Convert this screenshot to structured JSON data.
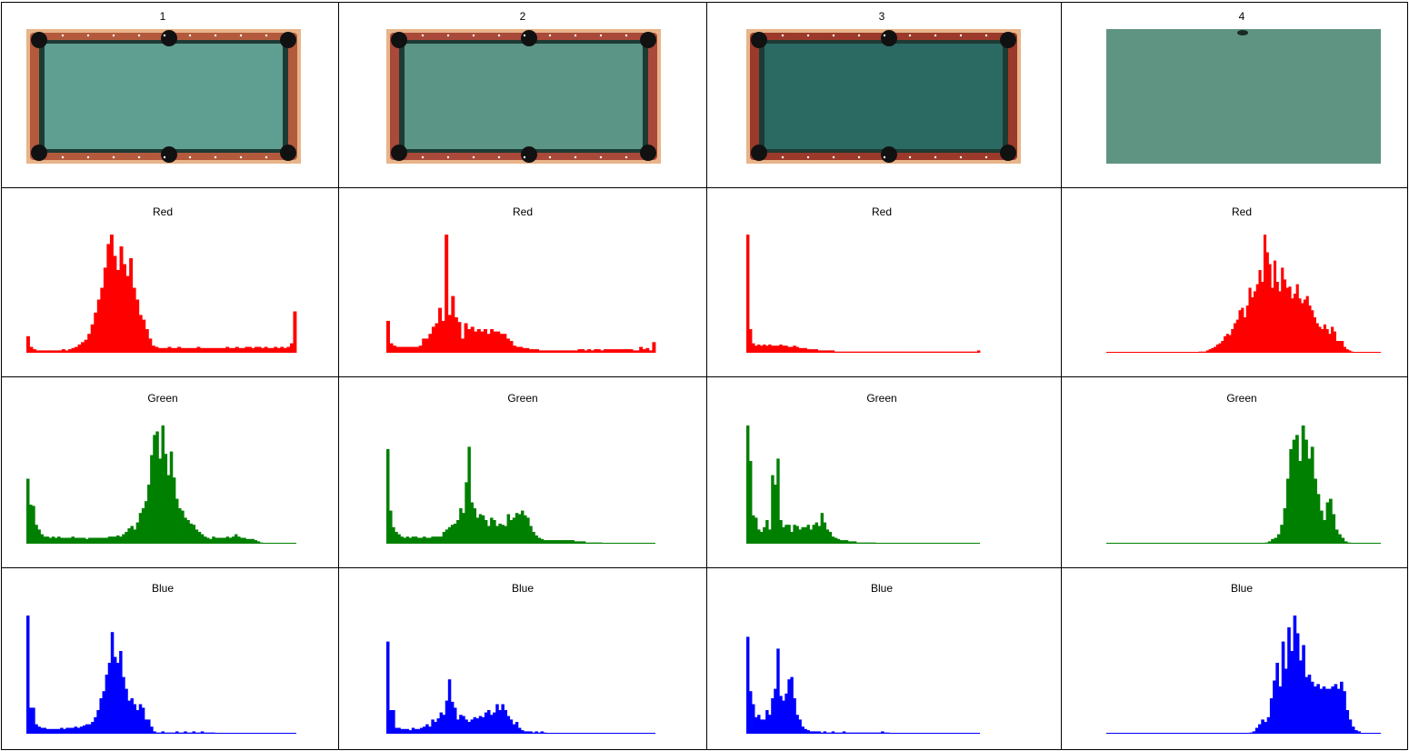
{
  "columns": [
    {
      "label": "1"
    },
    {
      "label": "2"
    },
    {
      "label": "3"
    },
    {
      "label": "4"
    }
  ],
  "thumbnails": [
    {
      "name": "table-full-bright",
      "felt": "#5f9f92",
      "rail": "#b45a3c",
      "frame": true
    },
    {
      "name": "table-full-normal",
      "felt": "#5a9586",
      "rail": "#a9493a",
      "frame": true
    },
    {
      "name": "table-full-dark",
      "felt": "#2a6a63",
      "rail": "#9b3a2a",
      "frame": true
    },
    {
      "name": "felt-crop",
      "felt": "#5f9483",
      "rail": "",
      "frame": false
    }
  ],
  "chart_data": [
    {
      "type": "bar",
      "title": "Red",
      "color": "#ff0000",
      "column": 1,
      "x_range": [
        0,
        255
      ],
      "ylim": [
        0,
        1
      ],
      "values": [
        0.14,
        0.05,
        0.03,
        0.02,
        0.02,
        0.02,
        0.02,
        0.02,
        0.02,
        0.02,
        0.02,
        0.03,
        0.02,
        0.03,
        0.04,
        0.05,
        0.07,
        0.09,
        0.11,
        0.16,
        0.24,
        0.34,
        0.45,
        0.55,
        0.72,
        0.92,
        1.0,
        0.82,
        0.7,
        0.9,
        0.75,
        0.65,
        0.8,
        0.55,
        0.45,
        0.32,
        0.28,
        0.2,
        0.12,
        0.06,
        0.05,
        0.04,
        0.04,
        0.04,
        0.05,
        0.04,
        0.04,
        0.05,
        0.04,
        0.04,
        0.04,
        0.04,
        0.04,
        0.05,
        0.04,
        0.04,
        0.04,
        0.04,
        0.04,
        0.04,
        0.04,
        0.04,
        0.05,
        0.04,
        0.04,
        0.05,
        0.04,
        0.04,
        0.05,
        0.05,
        0.04,
        0.05,
        0.05,
        0.04,
        0.05,
        0.04,
        0.04,
        0.05,
        0.04,
        0.05,
        0.04,
        0.05,
        0.08,
        0.35
      ]
    },
    {
      "type": "bar",
      "title": "Green",
      "color": "#008000",
      "column": 1,
      "x_range": [
        0,
        255
      ],
      "ylim": [
        0,
        1
      ],
      "values": [
        0.55,
        0.33,
        0.32,
        0.16,
        0.12,
        0.08,
        0.06,
        0.06,
        0.05,
        0.06,
        0.05,
        0.06,
        0.05,
        0.05,
        0.05,
        0.05,
        0.06,
        0.05,
        0.05,
        0.05,
        0.05,
        0.04,
        0.05,
        0.05,
        0.05,
        0.05,
        0.05,
        0.05,
        0.05,
        0.06,
        0.06,
        0.06,
        0.07,
        0.06,
        0.08,
        0.1,
        0.13,
        0.15,
        0.12,
        0.18,
        0.26,
        0.3,
        0.36,
        0.5,
        0.75,
        0.92,
        0.95,
        0.72,
        1.0,
        0.76,
        0.58,
        0.78,
        0.56,
        0.38,
        0.3,
        0.28,
        0.22,
        0.2,
        0.17,
        0.16,
        0.12,
        0.1,
        0.08,
        0.06,
        0.05,
        0.04,
        0.06,
        0.05,
        0.05,
        0.05,
        0.05,
        0.06,
        0.05,
        0.06,
        0.08,
        0.06,
        0.05,
        0.05,
        0.04,
        0.04,
        0.04,
        0.03,
        0.02,
        0.01,
        0.0,
        0.0,
        0.0,
        0.0,
        0.0,
        0.0,
        0.0,
        0.0,
        0.0,
        0.0,
        0.0,
        0.0
      ]
    },
    {
      "type": "bar",
      "title": "Blue",
      "color": "#0000ff",
      "column": 1,
      "x_range": [
        0,
        255
      ],
      "ylim": [
        0,
        1
      ],
      "values": [
        1.0,
        0.22,
        0.22,
        0.08,
        0.06,
        0.05,
        0.05,
        0.04,
        0.04,
        0.04,
        0.04,
        0.04,
        0.05,
        0.04,
        0.05,
        0.05,
        0.05,
        0.06,
        0.05,
        0.06,
        0.07,
        0.08,
        0.08,
        0.1,
        0.14,
        0.2,
        0.3,
        0.36,
        0.5,
        0.6,
        0.86,
        0.65,
        0.6,
        0.7,
        0.48,
        0.38,
        0.28,
        0.3,
        0.25,
        0.2,
        0.25,
        0.22,
        0.12,
        0.12,
        0.06,
        0.02,
        0.01,
        0.01,
        0.02,
        0.01,
        0.01,
        0.01,
        0.01,
        0.02,
        0.01,
        0.01,
        0.02,
        0.01,
        0.01,
        0.02,
        0.01,
        0.01,
        0.02,
        0.01,
        0.01,
        0.01,
        0.01,
        0.0,
        0.0,
        0.0,
        0.0,
        0.0,
        0.0,
        0.0,
        0.0,
        0.0,
        0.0,
        0.0,
        0.0,
        0.0,
        0.0,
        0.0,
        0.0,
        0.0,
        0.0,
        0.0,
        0.0,
        0.0,
        0.0,
        0.0,
        0.0,
        0.0,
        0.0,
        0.0,
        0.0,
        0.0
      ]
    },
    {
      "type": "bar",
      "title": "Red",
      "color": "#ff0000",
      "column": 2,
      "x_range": [
        0,
        255
      ],
      "ylim": [
        0,
        1
      ],
      "values": [
        0.27,
        0.08,
        0.06,
        0.05,
        0.05,
        0.05,
        0.05,
        0.05,
        0.05,
        0.05,
        0.06,
        0.12,
        0.12,
        0.16,
        0.22,
        0.25,
        0.38,
        0.27,
        1.0,
        0.32,
        0.48,
        0.3,
        0.26,
        0.12,
        0.25,
        0.2,
        0.22,
        0.18,
        0.2,
        0.18,
        0.2,
        0.16,
        0.2,
        0.18,
        0.18,
        0.16,
        0.16,
        0.12,
        0.1,
        0.06,
        0.05,
        0.05,
        0.04,
        0.04,
        0.03,
        0.03,
        0.03,
        0.02,
        0.02,
        0.02,
        0.02,
        0.02,
        0.02,
        0.02,
        0.02,
        0.02,
        0.02,
        0.02,
        0.02,
        0.03,
        0.03,
        0.02,
        0.03,
        0.02,
        0.03,
        0.03,
        0.02,
        0.03,
        0.03,
        0.03,
        0.03,
        0.03,
        0.03,
        0.03,
        0.03,
        0.03,
        0.02,
        0.02,
        0.05,
        0.03,
        0.04,
        0.02,
        0.09
      ]
    },
    {
      "type": "bar",
      "title": "Green",
      "color": "#008000",
      "column": 2,
      "x_range": [
        0,
        255
      ],
      "ylim": [
        0,
        1
      ],
      "values": [
        0.8,
        0.28,
        0.14,
        0.1,
        0.08,
        0.06,
        0.05,
        0.06,
        0.05,
        0.06,
        0.06,
        0.05,
        0.05,
        0.06,
        0.05,
        0.05,
        0.06,
        0.06,
        0.06,
        0.06,
        0.1,
        0.12,
        0.14,
        0.16,
        0.17,
        0.2,
        0.3,
        0.26,
        0.52,
        0.82,
        0.35,
        0.3,
        0.22,
        0.25,
        0.24,
        0.2,
        0.15,
        0.22,
        0.2,
        0.15,
        0.17,
        0.16,
        0.15,
        0.25,
        0.2,
        0.22,
        0.26,
        0.25,
        0.28,
        0.24,
        0.22,
        0.15,
        0.1,
        0.07,
        0.05,
        0.04,
        0.03,
        0.03,
        0.03,
        0.03,
        0.03,
        0.03,
        0.03,
        0.03,
        0.03,
        0.03,
        0.03,
        0.02,
        0.02,
        0.02,
        0.02,
        0.01,
        0.01,
        0.01,
        0.01,
        0.01,
        0.01,
        0.0,
        0.0,
        0.0,
        0.0,
        0.0,
        0.0,
        0.0,
        0.0,
        0.0,
        0.0,
        0.0,
        0.0,
        0.0,
        0.0,
        0.0,
        0.0,
        0.0,
        0.0,
        0.0
      ]
    },
    {
      "type": "bar",
      "title": "Blue",
      "color": "#0000ff",
      "column": 2,
      "x_range": [
        0,
        255
      ],
      "ylim": [
        0,
        1
      ],
      "values": [
        0.78,
        0.2,
        0.2,
        0.05,
        0.05,
        0.04,
        0.04,
        0.04,
        0.03,
        0.05,
        0.04,
        0.04,
        0.05,
        0.06,
        0.08,
        0.06,
        0.12,
        0.1,
        0.13,
        0.18,
        0.16,
        0.28,
        0.46,
        0.27,
        0.22,
        0.12,
        0.16,
        0.15,
        0.12,
        0.1,
        0.12,
        0.14,
        0.13,
        0.15,
        0.14,
        0.18,
        0.2,
        0.16,
        0.18,
        0.25,
        0.2,
        0.25,
        0.2,
        0.15,
        0.12,
        0.08,
        0.1,
        0.05,
        0.03,
        0.02,
        0.02,
        0.02,
        0.01,
        0.02,
        0.01,
        0.02,
        0.01,
        0.0,
        0.0,
        0.0,
        0.0,
        0.0,
        0.0,
        0.0,
        0.0,
        0.0,
        0.0,
        0.0,
        0.0,
        0.0,
        0.0,
        0.0,
        0.0,
        0.0,
        0.0,
        0.0,
        0.0,
        0.0,
        0.0,
        0.0,
        0.0,
        0.0,
        0.0,
        0.0,
        0.0,
        0.0,
        0.0,
        0.0,
        0.0,
        0.0,
        0.0,
        0.0,
        0.0,
        0.0,
        0.0,
        0.0
      ]
    },
    {
      "type": "bar",
      "title": "Red",
      "color": "#ff0000",
      "column": 3,
      "x_range": [
        0,
        255
      ],
      "ylim": [
        0,
        1
      ],
      "values": [
        1.0,
        0.2,
        0.08,
        0.06,
        0.07,
        0.06,
        0.07,
        0.06,
        0.07,
        0.06,
        0.06,
        0.06,
        0.07,
        0.06,
        0.06,
        0.05,
        0.05,
        0.06,
        0.05,
        0.04,
        0.04,
        0.04,
        0.03,
        0.03,
        0.03,
        0.03,
        0.02,
        0.02,
        0.02,
        0.02,
        0.02,
        0.02,
        0.01,
        0.01,
        0.01,
        0.01,
        0.01,
        0.01,
        0.01,
        0.01,
        0.01,
        0.01,
        0.01,
        0.01,
        0.01,
        0.01,
        0.01,
        0.01,
        0.01,
        0.01,
        0.01,
        0.01,
        0.01,
        0.01,
        0.01,
        0.01,
        0.01,
        0.01,
        0.01,
        0.01,
        0.01,
        0.01,
        0.01,
        0.01,
        0.01,
        0.01,
        0.01,
        0.01,
        0.01,
        0.01,
        0.01,
        0.01,
        0.01,
        0.01,
        0.01,
        0.01,
        0.01,
        0.01,
        0.01,
        0.01,
        0.01,
        0.01,
        0.01,
        0.01,
        0.02
      ]
    },
    {
      "type": "bar",
      "title": "Green",
      "color": "#008000",
      "column": 3,
      "x_range": [
        0,
        255
      ],
      "ylim": [
        0,
        1
      ],
      "values": [
        1.0,
        0.7,
        0.24,
        0.22,
        0.12,
        0.1,
        0.14,
        0.2,
        0.12,
        0.58,
        0.5,
        0.72,
        0.2,
        0.14,
        0.16,
        0.16,
        0.1,
        0.16,
        0.15,
        0.12,
        0.14,
        0.14,
        0.16,
        0.12,
        0.16,
        0.18,
        0.15,
        0.26,
        0.18,
        0.12,
        0.1,
        0.06,
        0.05,
        0.04,
        0.03,
        0.03,
        0.03,
        0.02,
        0.02,
        0.02,
        0.01,
        0.01,
        0.01,
        0.01,
        0.01,
        0.01,
        0.01,
        0.0,
        0.0,
        0.0,
        0.0,
        0.0,
        0.0,
        0.0,
        0.0,
        0.0,
        0.0,
        0.0,
        0.0,
        0.0,
        0.0,
        0.0,
        0.0,
        0.0,
        0.0,
        0.0,
        0.0,
        0.0,
        0.0,
        0.0,
        0.0,
        0.0,
        0.0,
        0.0,
        0.0,
        0.0,
        0.0,
        0.0,
        0.0,
        0.0,
        0.0,
        0.0,
        0.0,
        0.0,
        0.0
      ]
    },
    {
      "type": "bar",
      "title": "Blue",
      "color": "#0000ff",
      "column": 3,
      "x_range": [
        0,
        255
      ],
      "ylim": [
        0,
        1
      ],
      "values": [
        0.82,
        0.36,
        0.25,
        0.14,
        0.16,
        0.12,
        0.12,
        0.2,
        0.16,
        0.3,
        0.38,
        0.72,
        0.32,
        0.28,
        0.34,
        0.46,
        0.48,
        0.3,
        0.16,
        0.12,
        0.06,
        0.04,
        0.03,
        0.02,
        0.02,
        0.02,
        0.02,
        0.01,
        0.02,
        0.01,
        0.01,
        0.02,
        0.01,
        0.01,
        0.01,
        0.02,
        0.01,
        0.01,
        0.01,
        0.01,
        0.01,
        0.01,
        0.01,
        0.01,
        0.01,
        0.01,
        0.01,
        0.01,
        0.01,
        0.02,
        0.01,
        0.01,
        0.0,
        0.0,
        0.0,
        0.0,
        0.0,
        0.0,
        0.0,
        0.0,
        0.0,
        0.0,
        0.0,
        0.0,
        0.0,
        0.0,
        0.0,
        0.0,
        0.0,
        0.0,
        0.0,
        0.0,
        0.0,
        0.0,
        0.0,
        0.0,
        0.0,
        0.0,
        0.0,
        0.0,
        0.0,
        0.0,
        0.0,
        0.0,
        0.0
      ]
    },
    {
      "type": "bar",
      "title": "Red",
      "color": "#ff0000",
      "column": 4,
      "x_range": [
        0,
        255
      ],
      "ylim": [
        0,
        1
      ],
      "values": [
        0.0,
        0.0,
        0.0,
        0.0,
        0.0,
        0.0,
        0.0,
        0.0,
        0.0,
        0.0,
        0.0,
        0.0,
        0.0,
        0.0,
        0.0,
        0.0,
        0.0,
        0.0,
        0.0,
        0.0,
        0.0,
        0.0,
        0.0,
        0.0,
        0.0,
        0.0,
        0.0,
        0.0,
        0.0,
        0.0,
        0.0,
        0.0,
        0.0,
        0.0,
        0.0,
        0.0,
        0.0,
        0.01,
        0.01,
        0.01,
        0.02,
        0.03,
        0.04,
        0.05,
        0.07,
        0.08,
        0.1,
        0.14,
        0.16,
        0.15,
        0.2,
        0.25,
        0.28,
        0.36,
        0.38,
        0.3,
        0.4,
        0.55,
        0.47,
        0.52,
        0.58,
        0.7,
        0.6,
        1.0,
        0.85,
        0.75,
        0.55,
        0.78,
        0.6,
        0.52,
        0.72,
        0.62,
        0.55,
        0.56,
        0.46,
        0.5,
        0.58,
        0.46,
        0.42,
        0.45,
        0.48,
        0.4,
        0.36,
        0.3,
        0.25,
        0.22,
        0.2,
        0.24,
        0.2,
        0.16,
        0.22,
        0.18,
        0.1,
        0.1,
        0.1,
        0.05,
        0.03,
        0.02,
        0.01,
        0.0,
        0.0,
        0.0,
        0.0,
        0.0,
        0.0,
        0.0,
        0.0,
        0.0,
        0.0,
        0.0
      ]
    },
    {
      "type": "bar",
      "title": "Green",
      "color": "#008000",
      "column": 4,
      "x_range": [
        0,
        255
      ],
      "ylim": [
        0,
        1
      ],
      "values": [
        0.0,
        0.0,
        0.0,
        0.0,
        0.0,
        0.0,
        0.0,
        0.0,
        0.0,
        0.0,
        0.0,
        0.0,
        0.0,
        0.0,
        0.0,
        0.0,
        0.0,
        0.0,
        0.0,
        0.0,
        0.0,
        0.0,
        0.0,
        0.0,
        0.0,
        0.0,
        0.0,
        0.0,
        0.0,
        0.0,
        0.0,
        0.0,
        0.0,
        0.0,
        0.0,
        0.0,
        0.0,
        0.0,
        0.0,
        0.0,
        0.0,
        0.0,
        0.0,
        0.0,
        0.0,
        0.0,
        0.0,
        0.0,
        0.0,
        0.0,
        0.0,
        0.0,
        0.01,
        0.02,
        0.04,
        0.05,
        0.08,
        0.16,
        0.3,
        0.55,
        0.8,
        0.88,
        0.92,
        0.7,
        1.0,
        0.88,
        0.72,
        0.82,
        0.55,
        0.42,
        0.28,
        0.2,
        0.35,
        0.38,
        0.25,
        0.12,
        0.08,
        0.05,
        0.02,
        0.01,
        0.0,
        0.0,
        0.0,
        0.0,
        0.0,
        0.0,
        0.0,
        0.0,
        0.0,
        0.0
      ]
    },
    {
      "type": "bar",
      "title": "Blue",
      "color": "#0000ff",
      "column": 4,
      "x_range": [
        0,
        255
      ],
      "ylim": [
        0,
        1
      ],
      "values": [
        0.0,
        0.0,
        0.0,
        0.0,
        0.0,
        0.0,
        0.0,
        0.0,
        0.0,
        0.0,
        0.0,
        0.0,
        0.0,
        0.0,
        0.0,
        0.0,
        0.0,
        0.0,
        0.0,
        0.0,
        0.0,
        0.0,
        0.0,
        0.0,
        0.0,
        0.0,
        0.0,
        0.0,
        0.0,
        0.0,
        0.0,
        0.0,
        0.0,
        0.0,
        0.0,
        0.0,
        0.0,
        0.0,
        0.0,
        0.0,
        0.0,
        0.0,
        0.0,
        0.0,
        0.0,
        0.0,
        0.0,
        0.0,
        0.0,
        0.01,
        0.02,
        0.05,
        0.08,
        0.12,
        0.1,
        0.14,
        0.3,
        0.45,
        0.6,
        0.4,
        0.78,
        0.55,
        0.9,
        0.7,
        1.0,
        0.85,
        0.62,
        0.75,
        0.48,
        0.5,
        0.44,
        0.4,
        0.42,
        0.38,
        0.4,
        0.38,
        0.38,
        0.4,
        0.42,
        0.38,
        0.44,
        0.36,
        0.2,
        0.12,
        0.06,
        0.03,
        0.02,
        0.0,
        0.0,
        0.0,
        0.0,
        0.0,
        0.0,
        0.0
      ]
    }
  ]
}
